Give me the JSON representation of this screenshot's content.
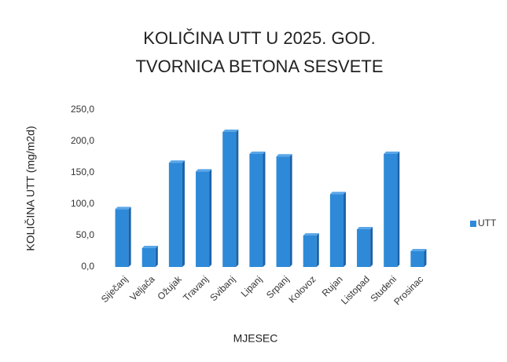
{
  "chart_data": {
    "type": "bar",
    "title": "KOLIČINA UTT U 2025. GOD.",
    "subtitle": "TVORNICA BETONA SESVETE",
    "x_label": "MJESEC",
    "y_label": "KOLIČINA UTT (mg/m2d)",
    "categories": [
      "Siječanj",
      "Veljača",
      "Ožujak",
      "Travanj",
      "Svibanj",
      "Lipanj",
      "Srpanj",
      "Kolovoz",
      "Rujan",
      "Listopad",
      "Studeni",
      "Prosinac"
    ],
    "series": [
      {
        "name": "UTT",
        "color": "#2e8ad8",
        "values": [
          92,
          30,
          166,
          152,
          215,
          180,
          176,
          50,
          116,
          60,
          180,
          25
        ]
      }
    ],
    "ylim": [
      0,
      250
    ],
    "yticks": [
      {
        "value": 0,
        "label": "0,0"
      },
      {
        "value": 50,
        "label": "50,0"
      },
      {
        "value": 100,
        "label": "100,0"
      },
      {
        "value": 150,
        "label": "150,0"
      },
      {
        "value": 200,
        "label": "200,0"
      },
      {
        "value": 250,
        "label": "250,0"
      }
    ],
    "grid": false,
    "legend": "right"
  }
}
